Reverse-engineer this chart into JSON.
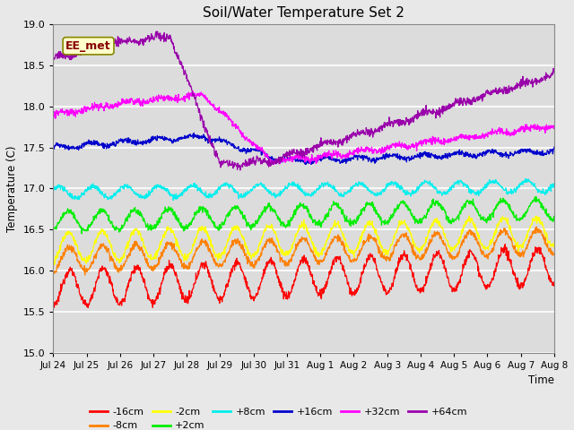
{
  "title": "Soil/Water Temperature Set 2",
  "xlabel": "Time",
  "ylabel": "Temperature (C)",
  "ylim": [
    15.0,
    19.0
  ],
  "yticks": [
    15.0,
    15.5,
    16.0,
    16.5,
    17.0,
    17.5,
    18.0,
    18.5,
    19.0
  ],
  "xtick_labels": [
    "Jul 24",
    "Jul 25",
    "Jul 26",
    "Jul 27",
    "Jul 28",
    "Jul 29",
    "Jul 30",
    "Jul 31",
    "Aug 1",
    "Aug 2",
    "Aug 3",
    "Aug 4",
    "Aug 5",
    "Aug 6",
    "Aug 7",
    "Aug 8"
  ],
  "annotation": "EE_met",
  "legend_entries": [
    "-16cm",
    "-8cm",
    "-2cm",
    "+2cm",
    "+8cm",
    "+16cm",
    "+32cm",
    "+64cm"
  ],
  "legend_colors": [
    "#ff0000",
    "#ff8000",
    "#ffff00",
    "#00ee00",
    "#00eeee",
    "#0000cc",
    "#ff00ff",
    "#9900aa"
  ],
  "plot_bg_color": "#dcdcdc",
  "fig_bg_color": "#e8e8e8",
  "grid_color": "#ffffff",
  "n_points": 1440
}
